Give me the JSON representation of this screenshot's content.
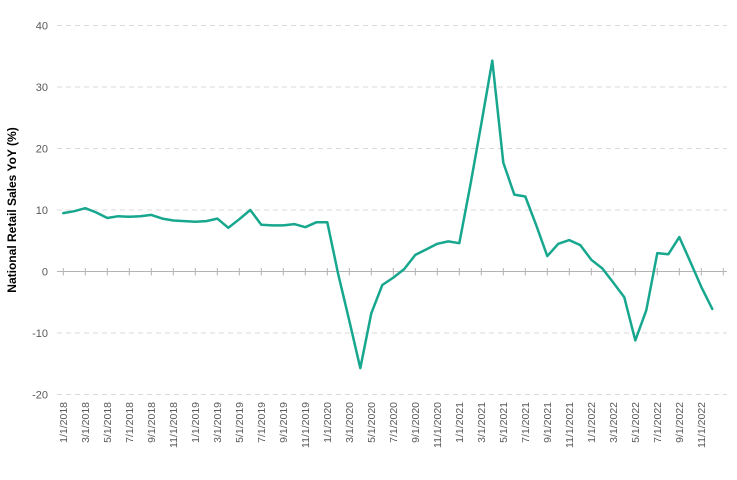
{
  "chart_data": {
    "type": "line",
    "title": "",
    "xlabel": "",
    "ylabel": "National Retail Sales YoY (%)",
    "ylim": [
      -20,
      40
    ],
    "yticks": [
      40,
      30,
      20,
      10,
      0,
      -10,
      -20
    ],
    "grid": "horizontal dashed, solid line at zero",
    "legend": "none",
    "x_tick_every": 2,
    "x_tick_labels": [
      "1/1/2018",
      "3/1/2018",
      "5/1/2018",
      "7/1/2018",
      "9/1/2018",
      "11/1/2018",
      "1/1/2019",
      "3/1/2019",
      "5/1/2019",
      "7/1/2019",
      "9/1/2019",
      "11/1/2019",
      "1/1/2020",
      "3/1/2020",
      "5/1/2020",
      "7/1/2020",
      "9/1/2020",
      "11/1/2020",
      "1/1/2021",
      "3/1/2021",
      "5/1/2021",
      "7/1/2021",
      "9/1/2021",
      "11/1/2021",
      "1/1/2022",
      "3/1/2022",
      "5/1/2022",
      "7/1/2022",
      "9/1/2022",
      "11/1/2022"
    ],
    "x": [
      "1/1/2018",
      "2/1/2018",
      "3/1/2018",
      "4/1/2018",
      "5/1/2018",
      "6/1/2018",
      "7/1/2018",
      "8/1/2018",
      "9/1/2018",
      "10/1/2018",
      "11/1/2018",
      "12/1/2018",
      "1/1/2019",
      "2/1/2019",
      "3/1/2019",
      "4/1/2019",
      "5/1/2019",
      "6/1/2019",
      "7/1/2019",
      "8/1/2019",
      "9/1/2019",
      "10/1/2019",
      "11/1/2019",
      "12/1/2019",
      "1/1/2020",
      "2/1/2020",
      "3/1/2020",
      "4/1/2020",
      "5/1/2020",
      "6/1/2020",
      "7/1/2020",
      "8/1/2020",
      "9/1/2020",
      "10/1/2020",
      "11/1/2020",
      "12/1/2020",
      "1/1/2021",
      "2/1/2021",
      "3/1/2021",
      "4/1/2021",
      "5/1/2021",
      "6/1/2021",
      "7/1/2021",
      "8/1/2021",
      "9/1/2021",
      "10/1/2021",
      "11/1/2021",
      "12/1/2021",
      "1/1/2022",
      "2/1/2022",
      "3/1/2022",
      "4/1/2022",
      "5/1/2022",
      "6/1/2022",
      "7/1/2022",
      "8/1/2022",
      "9/1/2022",
      "10/1/2022",
      "11/1/2022",
      "12/1/2022"
    ],
    "series": [
      {
        "name": "National Retail Sales YoY (%)",
        "values": [
          9.5,
          9.8,
          10.3,
          9.6,
          8.7,
          9.0,
          8.9,
          9.0,
          9.2,
          8.6,
          8.3,
          8.2,
          8.1,
          8.2,
          8.6,
          7.1,
          8.5,
          10.0,
          7.6,
          7.5,
          7.5,
          7.7,
          7.2,
          8.0,
          8.0,
          -0.5,
          -8.0,
          -15.7,
          -6.8,
          -2.2,
          -1.0,
          0.4,
          2.7,
          3.6,
          4.5,
          4.9,
          4.6,
          14.0,
          24.0,
          34.3,
          17.7,
          12.5,
          12.2,
          7.5,
          2.5,
          4.5,
          5.1,
          4.3,
          1.9,
          0.5,
          -1.8,
          -4.2,
          -11.2,
          -6.3,
          3.0,
          2.8,
          5.6,
          1.6,
          -2.5,
          -6.1
        ]
      }
    ],
    "colors": {
      "line": "#17a78e",
      "grid": "#d9d9d9",
      "zero_axis": "#b3b3b3",
      "tick": "#b3b3b3",
      "tick_label": "#595959",
      "axis_title": "#000000",
      "background": "#ffffff"
    }
  }
}
